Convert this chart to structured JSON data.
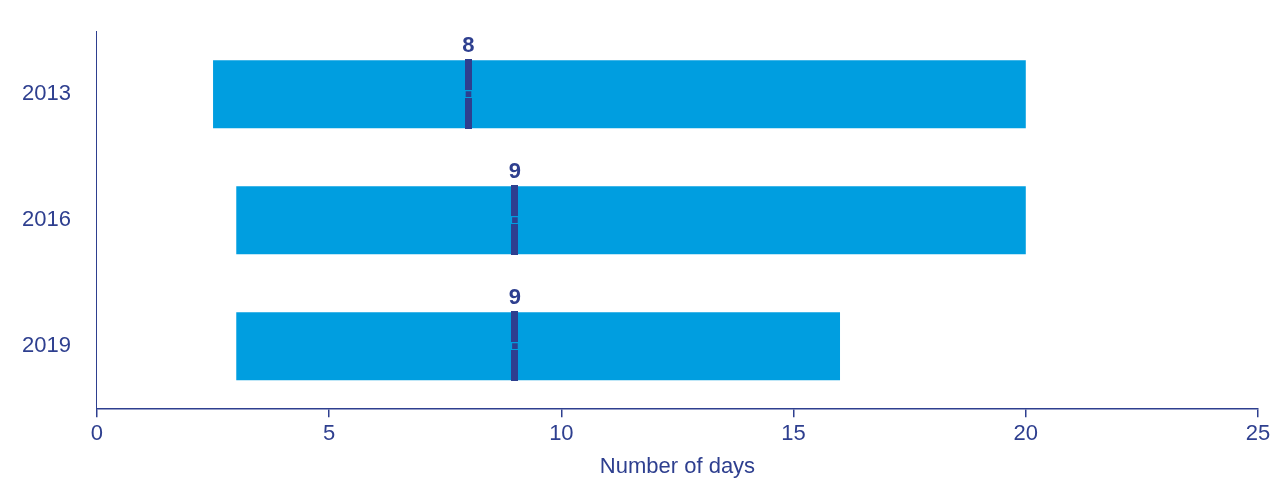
{
  "chart_data": {
    "type": "bar",
    "orientation": "horizontal",
    "categories": [
      "2013",
      "2016",
      "2019"
    ],
    "series": [
      {
        "type": "bar",
        "color": "#009ee0",
        "base": [
          2.5,
          3,
          3
        ],
        "values": [
          17.5,
          17,
          13
        ]
      },
      {
        "type": "scatter",
        "color": "#2e3f8f",
        "values": [
          8,
          9,
          9
        ],
        "value_labels": [
          "8",
          "9",
          "9"
        ]
      }
    ],
    "xlim": [
      0,
      25
    ],
    "xticks": [
      0,
      5,
      10,
      15,
      20,
      25
    ],
    "xlabel": "Number of days",
    "grid": false
  }
}
